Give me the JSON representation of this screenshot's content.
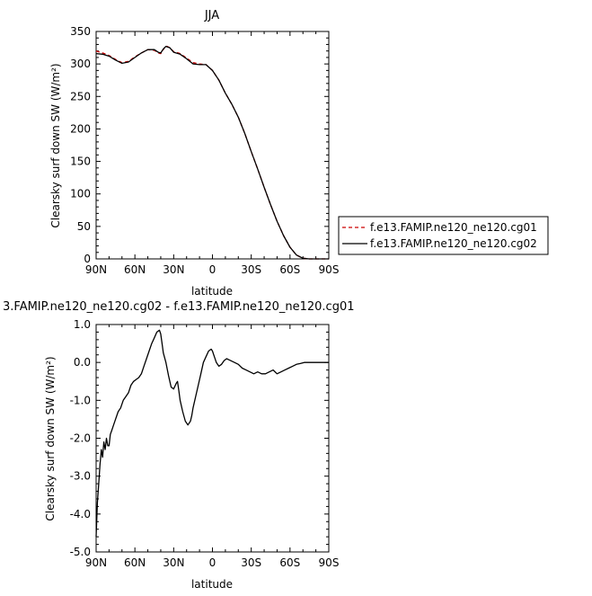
{
  "chart_data": [
    {
      "type": "line",
      "title": "JJA",
      "xlabel": "latitude",
      "ylabel": "Clearsky surf down SW (W/m²)",
      "xlim": [
        90,
        -90
      ],
      "ylim": [
        0,
        350
      ],
      "x_tick_values": [
        90,
        60,
        30,
        0,
        -30,
        -60,
        -90
      ],
      "x_tick_labels": [
        "90N",
        "60N",
        "30N",
        "0",
        "30S",
        "60S",
        "90S"
      ],
      "y_tick_values": [
        0,
        50,
        100,
        150,
        200,
        250,
        300,
        350
      ],
      "y_tick_labels": [
        "0",
        "50",
        "100",
        "150",
        "200",
        "250",
        "300",
        "350"
      ],
      "legend_position": "right",
      "series": [
        {
          "name": "f.e13.FAMIP.ne120_ne120.cg01",
          "color": "#cc0000",
          "dash": "dashed",
          "x": [
            90,
            85,
            80,
            75,
            70,
            65,
            60,
            55,
            50,
            45,
            42,
            40,
            38,
            36,
            33,
            30,
            25,
            20,
            15,
            10,
            5,
            0,
            -5,
            -10,
            -15,
            -20,
            -25,
            -30,
            -35,
            -40,
            -45,
            -50,
            -55,
            -60,
            -65,
            -70,
            -75,
            -80,
            -85,
            -90
          ],
          "y": [
            320,
            317,
            313,
            307,
            302,
            304,
            311,
            317,
            322,
            321,
            317,
            316,
            322,
            328,
            325,
            319,
            316,
            309,
            302,
            300,
            299,
            290,
            275,
            255,
            238,
            218,
            193,
            165,
            138,
            110,
            83,
            58,
            36,
            18,
            6,
            1,
            0,
            0,
            0,
            0
          ]
        },
        {
          "name": "f.e13.FAMIP.ne120_ne120.cg02",
          "color": "#000000",
          "dash": "solid",
          "x": [
            90,
            85,
            80,
            75,
            70,
            65,
            60,
            55,
            50,
            45,
            42,
            40,
            38,
            36,
            33,
            30,
            25,
            20,
            15,
            10,
            5,
            0,
            -5,
            -10,
            -15,
            -20,
            -25,
            -30,
            -35,
            -40,
            -45,
            -50,
            -55,
            -60,
            -65,
            -70,
            -75,
            -80,
            -85,
            -90
          ],
          "y": [
            316,
            315,
            312,
            306,
            301,
            303,
            310,
            317,
            322,
            322,
            318,
            317,
            323,
            327,
            325,
            318,
            315,
            308,
            300,
            299,
            299,
            290,
            275,
            255,
            238,
            218,
            193,
            165,
            138,
            110,
            83,
            58,
            36,
            18,
            6,
            1,
            0,
            0,
            0,
            0
          ]
        }
      ]
    },
    {
      "type": "line",
      "title": "3.FAMIP.ne120_ne120.cg02 - f.e13.FAMIP.ne120_ne120.cg01",
      "xlabel": "latitude",
      "ylabel": "Clearsky surf down SW (W/m²)",
      "xlim": [
        90,
        -90
      ],
      "ylim": [
        -5.0,
        1.0
      ],
      "x_tick_values": [
        90,
        60,
        30,
        0,
        -30,
        -60,
        -90
      ],
      "x_tick_labels": [
        "90N",
        "60N",
        "30N",
        "0",
        "30S",
        "60S",
        "90S"
      ],
      "y_tick_values": [
        -5.0,
        -4.0,
        -3.0,
        -2.0,
        -1.0,
        0.0,
        1.0
      ],
      "y_tick_labels": [
        "-5.0",
        "-4.0",
        "-3.0",
        "-2.0",
        "-1.0",
        "0.0",
        "1.0"
      ],
      "series": [
        {
          "color": "#000000",
          "dash": "solid",
          "x": [
            90,
            89,
            88,
            87,
            86,
            85,
            84,
            83,
            82,
            81,
            80,
            79,
            78,
            77,
            75,
            73,
            71,
            69,
            67,
            65,
            63,
            61,
            59,
            57,
            55,
            53,
            51,
            49,
            47,
            45,
            43,
            41,
            40,
            39,
            38,
            36,
            34,
            32,
            30,
            28,
            27,
            26,
            25,
            23,
            21,
            19,
            17,
            16,
            15,
            13,
            11,
            9,
            7,
            5,
            3,
            1,
            0,
            -1,
            -3,
            -5,
            -7,
            -9,
            -11,
            -14,
            -17,
            -20,
            -23,
            -26,
            -29,
            -32,
            -35,
            -38,
            -41,
            -44,
            -47,
            -50,
            -53,
            -56,
            -59,
            -62,
            -65,
            -68,
            -71,
            -74,
            -77,
            -80,
            -83,
            -86,
            -90
          ],
          "y": [
            -4.6,
            -3.7,
            -3.2,
            -2.7,
            -2.3,
            -2.5,
            -2.1,
            -2.3,
            -2.0,
            -2.2,
            -2.2,
            -1.9,
            -1.8,
            -1.7,
            -1.5,
            -1.3,
            -1.2,
            -1.0,
            -0.9,
            -0.8,
            -0.6,
            -0.5,
            -0.45,
            -0.4,
            -0.3,
            -0.1,
            0.1,
            0.3,
            0.5,
            0.65,
            0.8,
            0.85,
            0.75,
            0.5,
            0.25,
            0.0,
            -0.35,
            -0.65,
            -0.7,
            -0.55,
            -0.5,
            -0.75,
            -1.0,
            -1.3,
            -1.55,
            -1.65,
            -1.55,
            -1.4,
            -1.2,
            -0.9,
            -0.6,
            -0.3,
            0.0,
            0.15,
            0.3,
            0.35,
            0.3,
            0.2,
            0.0,
            -0.1,
            -0.05,
            0.05,
            0.1,
            0.05,
            0.0,
            -0.05,
            -0.15,
            -0.2,
            -0.25,
            -0.3,
            -0.25,
            -0.3,
            -0.3,
            -0.25,
            -0.2,
            -0.3,
            -0.25,
            -0.2,
            -0.15,
            -0.1,
            -0.05,
            -0.03,
            0.0,
            0.0,
            0.0,
            0.0,
            0.0,
            0.0,
            0.0
          ]
        }
      ]
    }
  ]
}
